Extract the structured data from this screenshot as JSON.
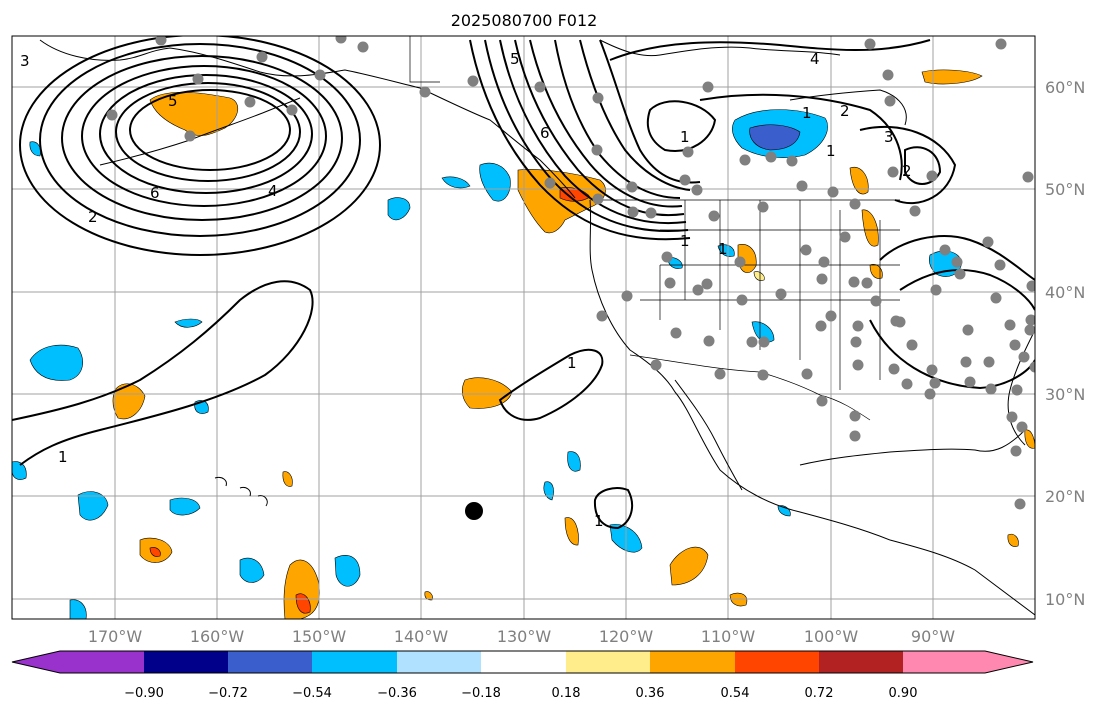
{
  "title": "2025080700 F012",
  "map": {
    "lat_labels": [
      "60°N",
      "50°N",
      "40°N",
      "30°N",
      "20°N",
      "10°N"
    ],
    "lon_labels": [
      "170°W",
      "160°W",
      "150°W",
      "140°W",
      "130°W",
      "120°W",
      "110°W",
      "100°W",
      "90°W"
    ],
    "contour_labels": [
      "3",
      "5",
      "6",
      "5",
      "4",
      "1",
      "2",
      "6",
      "4",
      "1",
      "1",
      "1",
      "2",
      "3",
      "2",
      "1",
      "1",
      "1",
      "1"
    ],
    "station_color": "#808080",
    "marker_color": "#000000"
  },
  "colorbar": {
    "tick_labels": [
      "−0.90",
      "−0.72",
      "−0.54",
      "−0.36",
      "−0.18",
      "0.18",
      "0.36",
      "0.54",
      "0.72",
      "0.90"
    ],
    "colors": [
      "#9932cc",
      "#00008b",
      "#3a5fcd",
      "#00bfff",
      "#b0e2ff",
      "#ffffff",
      "#ffec8b",
      "#ffa500",
      "#ff4500",
      "#b22222",
      "#ff88b0"
    ]
  }
}
